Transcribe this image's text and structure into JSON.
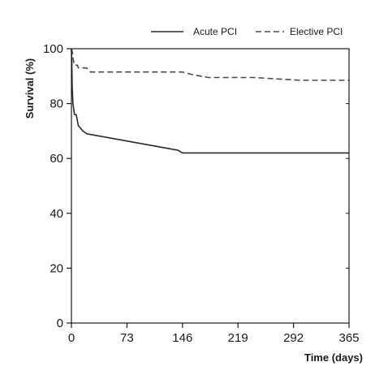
{
  "chart_data": {
    "type": "line",
    "title": "",
    "xlabel": "Time (days)",
    "ylabel": "Survival (%)",
    "xlim": [
      0,
      365
    ],
    "ylim": [
      0,
      100
    ],
    "xticks": [
      0,
      73,
      146,
      219,
      292,
      365
    ],
    "yticks": [
      0,
      20,
      40,
      60,
      80,
      100
    ],
    "grid": false,
    "legend_position": "top-right",
    "series": [
      {
        "name": "Acute PCI",
        "style": "solid",
        "color": "#2a2a2a",
        "x": [
          0,
          0.5,
          1,
          1.5,
          2,
          3,
          4,
          5,
          6,
          7,
          9,
          12,
          15,
          20,
          40,
          60,
          80,
          100,
          120,
          140,
          146,
          200,
          250,
          300,
          365
        ],
        "y": [
          100,
          95,
          86,
          83,
          80,
          78,
          76,
          76,
          76,
          75,
          72,
          71,
          70,
          69,
          68,
          67,
          66,
          65,
          64,
          63,
          62,
          62,
          62,
          62,
          62
        ]
      },
      {
        "name": "Elective PCI",
        "style": "dashed",
        "color": "#4a4a4a",
        "x": [
          0,
          1,
          2,
          3,
          4,
          5,
          6,
          8,
          9,
          10,
          20,
          25,
          60,
          140,
          146,
          160,
          180,
          240,
          300,
          365
        ],
        "y": [
          100,
          99,
          97,
          95,
          94,
          94,
          94,
          94,
          93,
          93,
          93,
          91.5,
          91.5,
          91.5,
          91.5,
          90.5,
          89.5,
          89.5,
          88.5,
          88.5
        ]
      }
    ]
  }
}
